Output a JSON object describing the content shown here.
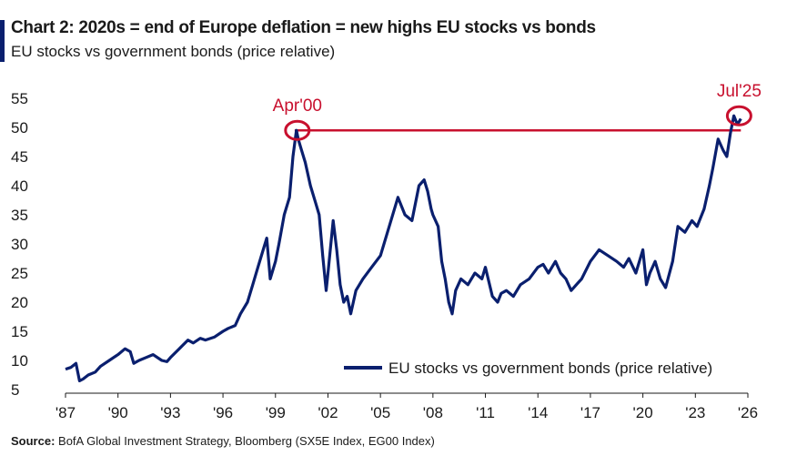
{
  "header": {
    "title": "Chart 2: 2020s = end of Europe deflation = new highs EU stocks vs bonds",
    "subtitle": "EU stocks vs government bonds (price relative)"
  },
  "source": {
    "label": "Source:",
    "text": "BofA Global Investment Strategy, Bloomberg (SX5E Index, EG00 Index)"
  },
  "chart_data": {
    "type": "line",
    "ylim": [
      5,
      55
    ],
    "xlim": [
      1987,
      2026
    ],
    "y_ticks": [
      5,
      10,
      15,
      20,
      25,
      30,
      35,
      40,
      45,
      50,
      55
    ],
    "x_ticks": [
      {
        "v": 1987,
        "label": "'87"
      },
      {
        "v": 1990,
        "label": "'90"
      },
      {
        "v": 1993,
        "label": "'93"
      },
      {
        "v": 1996,
        "label": "'96"
      },
      {
        "v": 1999,
        "label": "'99"
      },
      {
        "v": 2002,
        "label": "'02"
      },
      {
        "v": 2005,
        "label": "'05"
      },
      {
        "v": 2008,
        "label": "'08"
      },
      {
        "v": 2011,
        "label": "'11"
      },
      {
        "v": 2014,
        "label": "'14"
      },
      {
        "v": 2017,
        "label": "'17"
      },
      {
        "v": 2020,
        "label": "'20"
      },
      {
        "v": 2023,
        "label": "'23"
      },
      {
        "v": 2026,
        "label": "'26"
      }
    ],
    "grid": false,
    "legend_position": "bottom-right",
    "series": [
      {
        "name": "EU stocks vs government bonds (price relative)",
        "color": "#0a1f6e",
        "x": [
          1987.0,
          1987.3,
          1987.6,
          1987.8,
          1988.0,
          1988.3,
          1988.7,
          1989.0,
          1989.5,
          1990.0,
          1990.4,
          1990.7,
          1990.9,
          1991.2,
          1991.6,
          1992.0,
          1992.5,
          1992.8,
          1993.0,
          1993.5,
          1994.0,
          1994.3,
          1994.7,
          1995.0,
          1995.5,
          1996.0,
          1996.3,
          1996.7,
          1997.0,
          1997.4,
          1997.7,
          1998.0,
          1998.3,
          1998.5,
          1998.7,
          1999.0,
          1999.2,
          1999.5,
          1999.8,
          2000.0,
          2000.2,
          2000.3,
          2000.5,
          2000.7,
          2001.0,
          2001.3,
          2001.5,
          2001.7,
          2001.9,
          2002.0,
          2002.3,
          2002.5,
          2002.7,
          2002.9,
          2003.1,
          2003.3,
          2003.6,
          2004.0,
          2004.5,
          2005.0,
          2005.5,
          2006.0,
          2006.4,
          2006.8,
          2007.2,
          2007.5,
          2007.7,
          2007.9,
          2008.0,
          2008.3,
          2008.5,
          2008.7,
          2008.9,
          2009.1,
          2009.3,
          2009.6,
          2010.0,
          2010.4,
          2010.8,
          2011.0,
          2011.4,
          2011.7,
          2011.9,
          2012.2,
          2012.6,
          2013.0,
          2013.5,
          2014.0,
          2014.3,
          2014.6,
          2015.0,
          2015.3,
          2015.6,
          2015.9,
          2016.2,
          2016.5,
          2017.0,
          2017.5,
          2018.0,
          2018.5,
          2018.9,
          2019.2,
          2019.6,
          2020.0,
          2020.2,
          2020.4,
          2020.7,
          2021.0,
          2021.3,
          2021.7,
          2022.0,
          2022.4,
          2022.8,
          2023.1,
          2023.5,
          2023.8,
          2024.0,
          2024.3,
          2024.6,
          2024.8,
          2025.0,
          2025.2,
          2025.4,
          2025.6
        ],
        "values": [
          8.5,
          8.8,
          9.5,
          6.5,
          6.8,
          7.5,
          8.0,
          9.0,
          10.0,
          11.0,
          12.0,
          11.5,
          9.5,
          10.0,
          10.5,
          11.0,
          10.0,
          9.8,
          10.5,
          12.0,
          13.5,
          13.0,
          13.8,
          13.5,
          14.0,
          15.0,
          15.5,
          16.0,
          18.0,
          20.0,
          23.0,
          26.0,
          29.0,
          31.0,
          24.0,
          27.0,
          30.0,
          35.0,
          38.0,
          45.0,
          49.5,
          48.0,
          46.0,
          44.0,
          40.0,
          37.0,
          35.0,
          28.0,
          22.0,
          25.0,
          34.0,
          29.0,
          23.0,
          20.0,
          21.0,
          18.0,
          22.0,
          24.0,
          26.0,
          28.0,
          33.0,
          38.0,
          35.0,
          34.0,
          40.0,
          41.0,
          39.0,
          36.0,
          35.0,
          33.0,
          27.0,
          24.0,
          20.0,
          18.0,
          22.0,
          24.0,
          23.0,
          25.0,
          24.0,
          26.0,
          21.0,
          20.0,
          21.5,
          22.0,
          21.0,
          23.0,
          24.0,
          26.0,
          26.5,
          25.0,
          27.0,
          25.0,
          24.0,
          22.0,
          23.0,
          24.0,
          27.0,
          29.0,
          28.0,
          27.0,
          26.0,
          27.5,
          25.0,
          29.0,
          23.0,
          25.0,
          27.0,
          24.0,
          22.5,
          27.0,
          33.0,
          32.0,
          34.0,
          33.0,
          36.0,
          40.0,
          43.0,
          48.0,
          46.0,
          45.0,
          49.0,
          52.0,
          50.5,
          51.5
        ]
      }
    ],
    "reference_line": {
      "y": 49.5,
      "x_start": 2000.1,
      "x_end": 2025.6
    },
    "annotations": [
      {
        "label": "Apr'00",
        "x": 2000.25,
        "y": 49.5
      },
      {
        "label": "Jul'25",
        "x": 2025.5,
        "y": 52.0
      }
    ]
  },
  "colors": {
    "line": "#0a1f6e",
    "highlight": "#c8102e",
    "title_bar": "#0a1f6e"
  }
}
